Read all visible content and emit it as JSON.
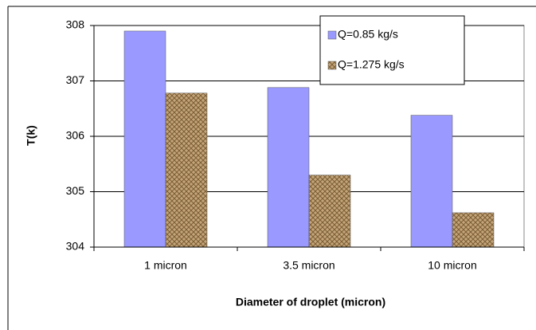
{
  "chart_data": {
    "type": "bar",
    "x_label": "Diameter of droplet (micron)",
    "y_label": "T(k)",
    "categories": [
      "1 micron",
      "3.5 micron",
      "10 micron"
    ],
    "series": [
      {
        "name": "Q=0.85 kg/s",
        "color": "#9999ff",
        "values": [
          307.9,
          306.88,
          306.38
        ]
      },
      {
        "name": "Q=1.275 kg/s",
        "color": "#c4a57a",
        "values": [
          306.78,
          305.3,
          304.62
        ]
      }
    ],
    "ylim": [
      304,
      308
    ],
    "yticks": [
      304,
      305,
      306,
      307,
      308
    ],
    "grid": true,
    "legend": "upper right"
  }
}
